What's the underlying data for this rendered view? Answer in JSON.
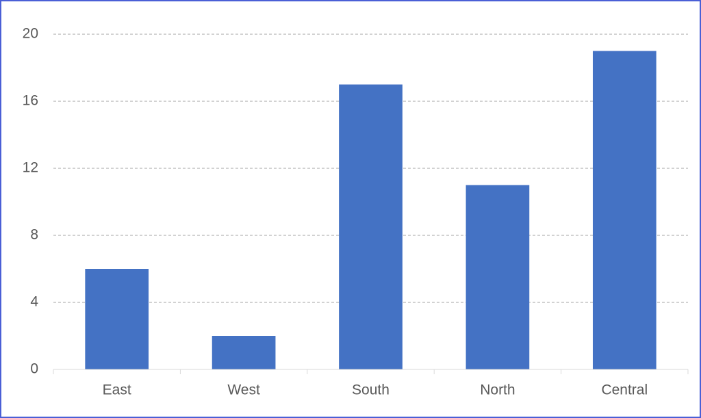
{
  "chart_data": {
    "type": "bar",
    "categories": [
      "East",
      "West",
      "South",
      "North",
      "Central"
    ],
    "values": [
      6,
      2,
      17,
      11,
      19
    ],
    "color": "#4472c4",
    "ylim": [
      0,
      20
    ],
    "yticks": [
      0,
      4,
      8,
      12,
      16,
      20
    ],
    "grid": true
  }
}
